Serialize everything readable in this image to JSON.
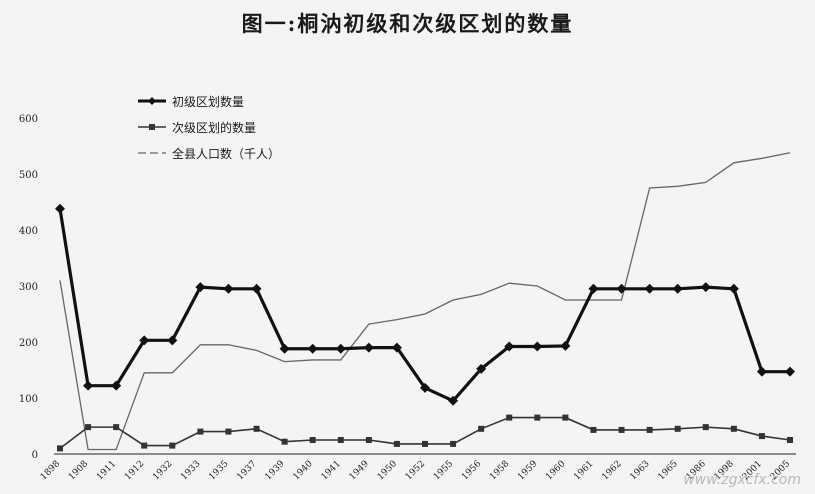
{
  "chart_data": {
    "type": "line",
    "title": "图一:桐汭初级和次级区划的数量",
    "categories": [
      "1898",
      "1908",
      "1911",
      "1912",
      "1932",
      "1933",
      "1935",
      "1937",
      "1939",
      "1940",
      "1941",
      "1949",
      "1950",
      "1952",
      "1955",
      "1956",
      "1958",
      "1959",
      "1960",
      "1961",
      "1962",
      "1963",
      "1965",
      "1986",
      "1998",
      "2001",
      "2005"
    ],
    "ylim": [
      0,
      600
    ],
    "yticks": [
      0,
      100,
      200,
      300,
      400,
      500,
      600
    ],
    "series": [
      {
        "name": "初级区划数量",
        "color": "#111111",
        "values": [
          438,
          122,
          122,
          203,
          203,
          298,
          295,
          295,
          188,
          188,
          188,
          190,
          190,
          118,
          95,
          152,
          192,
          192,
          193,
          295,
          295,
          295,
          295,
          298,
          295,
          147,
          147
        ]
      },
      {
        "name": "次级区划的数量",
        "color": "#333333",
        "values": [
          10,
          48,
          48,
          15,
          15,
          40,
          40,
          45,
          22,
          25,
          25,
          25,
          18,
          18,
          18,
          45,
          65,
          65,
          65,
          43,
          43,
          43,
          45,
          48,
          45,
          32,
          25
        ]
      },
      {
        "name": "全县人口数（千人）",
        "color": "#666666",
        "values": [
          310,
          8,
          8,
          145,
          145,
          195,
          195,
          185,
          165,
          168,
          168,
          232,
          240,
          250,
          275,
          285,
          305,
          300,
          275,
          275,
          275,
          475,
          478,
          485,
          520,
          528,
          538
        ]
      }
    ],
    "grid": false,
    "legend": "top-left"
  },
  "watermark": "www.zgxcfx.com"
}
